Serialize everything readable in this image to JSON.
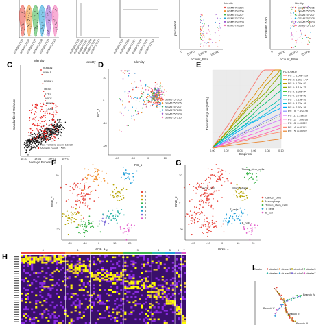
{
  "panel_labels": [
    "C",
    "D",
    "E",
    "F",
    "G",
    "H",
    "I"
  ],
  "colors": {
    "samples": [
      "#e8483f",
      "#f28e2b",
      "#3cb44b",
      "#1f9ed8",
      "#9b59d0",
      "#f26bb2",
      "#7f7f7f",
      "#bcbd22"
    ],
    "clusters": [
      "#e8483f",
      "#f28e2b",
      "#b5a300",
      "#3cb44b",
      "#2bb3a5",
      "#1f9ed8",
      "#7d6bd8",
      "#e155c8"
    ],
    "celltypes": [
      "#e8483f",
      "#b5a300",
      "#3cb44b",
      "#1f9ed8",
      "#e155c8"
    ],
    "pcs": [
      "#f8766d",
      "#e18a00",
      "#be9c00",
      "#8cab00",
      "#24b700",
      "#00be70",
      "#00c1ab",
      "#00bbda",
      "#00acfc",
      "#8b93ff",
      "#d575fe",
      "#f962dd",
      "#ff65ac",
      "#ff8a70",
      "#e9842c"
    ],
    "heatmap": [
      "#ffff00",
      "#2a0a4d",
      "#8a2be2",
      "#e8483f"
    ]
  },
  "chart_data": [
    {
      "id": "A",
      "type": "violin",
      "categories": [
        "GSM5757205",
        "GSM5757206",
        "GSM5757207",
        "GSM5757208",
        "GSM5757209",
        "GSM5757210"
      ],
      "xlabel": "Identity",
      "ylabel": "",
      "ylim": [
        0,
        100
      ]
    },
    {
      "id": "B",
      "type": "scatter",
      "xlabel": "Identity",
      "panels": 2
    },
    {
      "id": "B2",
      "type": "scatter",
      "xlabel": "nCount_RNA",
      "ylabel": "percent.mt",
      "legend_title": "Identity",
      "legend": [
        "GSM5757205",
        "GSM5757206",
        "GSM5757207",
        "GSM5757208",
        "GSM5757209",
        "GSM5757210"
      ],
      "xticks": [
        "0",
        "50000",
        "100000",
        "150000"
      ]
    },
    {
      "id": "B3",
      "type": "scatter",
      "xlabel": "nCount_RNA",
      "ylabel": "nFeature_RNA",
      "legend_title": "Identity",
      "legend": [
        "GSM5757205",
        "GSM5757206",
        "GSM5757207",
        "GSM5757208",
        "GSM5757209",
        "GSM5757210"
      ],
      "xticks": [
        "0",
        "50000",
        "100000",
        "150000"
      ]
    },
    {
      "id": "C",
      "type": "scatter",
      "xlabel": "Average Expression",
      "ylabel": "Standardized Variance",
      "xticks": [
        "1e-03",
        "1e-01",
        "1e+01",
        "1e+03"
      ],
      "genes": [
        "JCHAIN",
        "IGHA1",
        "SPINK4",
        "REG4",
        "TFF3",
        "IGKC",
        "MUC2",
        "LCN2"
      ],
      "legend": [
        "Non-variable count: 16339",
        "Variable count: 1500"
      ],
      "legend_colors": [
        "#111111",
        "#e8201c"
      ]
    },
    {
      "id": "D",
      "type": "scatter",
      "xlabel": "PC_1",
      "ylabel": "PC_2",
      "xticks": [
        "-20",
        "-10",
        "0",
        "10"
      ],
      "yticks": [
        "-20",
        "-10",
        "0",
        "10"
      ],
      "xlim": [
        -25,
        14
      ],
      "ylim": [
        -24,
        14
      ],
      "legend": [
        "GSM5757205",
        "GSM5757206",
        "GSM5757207",
        "GSM5757208",
        "GSM5757209",
        "GSM5757210"
      ]
    },
    {
      "id": "E",
      "type": "line",
      "xlabel": "Empirical",
      "ylabel": "Theoretical [runif(1000)]",
      "xticks": [
        "0.00",
        "0.02",
        "0.04",
        "0.06",
        "0.08",
        "0.10"
      ],
      "legend_title": "PC  p-value",
      "legend": [
        "PC 1: 1.06e-109",
        "PC 2: 1.25e-147",
        "PC 3: 1.25e-97",
        "PC 4: 3.14e-75",
        "PC 5: 8.36e-54",
        "PC 6: 6.76e-56",
        "PC 7: 2.15e-39",
        "PC 8: 4.74e-46",
        "PC 9: 2.97e-26",
        "PC 10: 7.41e-36",
        "PC 11: 2.28e-27",
        "PC 12: 7.30e-26",
        "PC 13: 0.00022",
        "PC 14: 0.00112",
        "PC 15: 0.00082"
      ]
    },
    {
      "id": "F",
      "type": "scatter",
      "xlabel": "tSNE_1",
      "ylabel": "tSNE_2",
      "xticks": [
        "-20",
        "-10",
        "0",
        "10",
        "20"
      ],
      "yticks": [
        "-20",
        "0",
        "20"
      ],
      "xlim": [
        -25,
        25
      ],
      "ylim": [
        -28,
        28
      ],
      "legend": [
        "0",
        "1",
        "2",
        "3",
        "4",
        "5",
        "6",
        "7"
      ]
    },
    {
      "id": "G",
      "type": "scatter",
      "xlabel": "tSNE_1",
      "ylabel": "tSNE_2",
      "xticks": [
        "-20",
        "-10",
        "0",
        "10",
        "20"
      ],
      "yticks": [
        "-20",
        "0",
        "20"
      ],
      "xlim": [
        -25,
        25
      ],
      "ylim": [
        -28,
        28
      ],
      "legend": [
        "Cancer_cells",
        "Macrophage",
        "Tissue_stem_cells",
        "T_cells",
        "B_cell"
      ],
      "annotations": [
        "Tissue_stem_cells",
        "Cancer_cells",
        "Macrophage",
        "T_cells",
        "B_cell"
      ]
    },
    {
      "id": "H",
      "type": "heatmap",
      "cluster_labels": [
        "0",
        "1",
        "2",
        "3",
        "4",
        "5",
        "6",
        "7"
      ],
      "cluster_widths": [
        0.27,
        0.15,
        0.2,
        0.17,
        0.08,
        0.06,
        0.04,
        0.03
      ]
    },
    {
      "id": "I",
      "type": "scatter",
      "ylabel": "Component 2",
      "legend_title": "Cluster",
      "legend": [
        "cluster0",
        "cluster1",
        "cluster2",
        "cluster3",
        "cluster4",
        "cluster5",
        "cluster6",
        "cluster7"
      ],
      "branches": [
        "Branch IV",
        "Branch V",
        "Branch VI",
        "Branch III"
      ]
    }
  ]
}
